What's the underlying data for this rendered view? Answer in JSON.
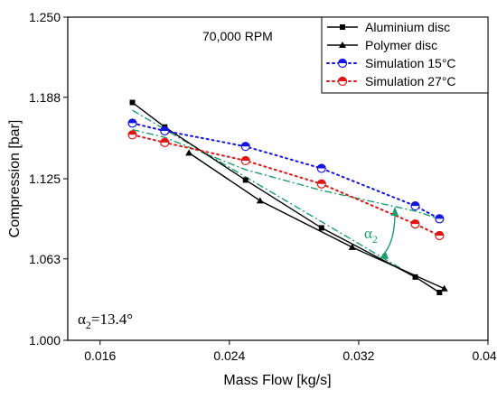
{
  "chart_data": {
    "type": "line",
    "annotation_top": "70,000 RPM",
    "xlabel": "Mass Flow [kg/s]",
    "ylabel": "Compression [bar]",
    "xlim": [
      0.014,
      0.04
    ],
    "ylim": [
      1.0,
      1.25
    ],
    "xticks": [
      "0.016",
      "0.024",
      "0.032",
      "0.040"
    ],
    "xtick_values": [
      0.016,
      0.024,
      0.032,
      0.04
    ],
    "yticks": [
      "1.000",
      "1.063",
      "1.125",
      "1.188",
      "1.250"
    ],
    "ytick_values": [
      1.0,
      1.063,
      1.125,
      1.188,
      1.25
    ],
    "legend_position": "top-right",
    "series": [
      {
        "name": "Aluminium disc",
        "marker": "square",
        "line": "solid",
        "color": "#000000",
        "x": [
          0.018,
          0.02,
          0.025,
          0.0297,
          0.0355,
          0.037
        ],
        "y": [
          1.184,
          1.165,
          1.124,
          1.087,
          1.049,
          1.037
        ]
      },
      {
        "name": "Polymer disc",
        "marker": "triangle",
        "line": "solid",
        "color": "#000000",
        "x": [
          0.0215,
          0.0259,
          0.0316,
          0.0373
        ],
        "y": [
          1.145,
          1.108,
          1.072,
          1.04
        ]
      },
      {
        "name": "Simulation 15°C",
        "marker": "half-circle",
        "line": "dotted",
        "color": "#1515e0",
        "x": [
          0.018,
          0.02,
          0.025,
          0.0297,
          0.0355,
          0.037
        ],
        "y": [
          1.168,
          1.162,
          1.15,
          1.133,
          1.104,
          1.094
        ]
      },
      {
        "name": "Simulation 27°C",
        "marker": "half-circle",
        "line": "dotted",
        "color": "#e01515",
        "x": [
          0.018,
          0.02,
          0.025,
          0.0297,
          0.0355,
          0.037
        ],
        "y": [
          1.159,
          1.153,
          1.139,
          1.121,
          1.09,
          1.081
        ]
      }
    ],
    "fit_lines_color": "#1a9e6a",
    "fit_lines": [
      {
        "x": [
          0.018,
          0.0355
        ],
        "y": [
          1.178,
          1.049
        ]
      },
      {
        "x": [
          0.018,
          0.02,
          0.025,
          0.0297,
          0.0355,
          0.037
        ],
        "y": [
          1.163,
          1.157,
          1.132,
          1.116,
          1.1,
          1.094
        ]
      }
    ],
    "angle_label": {
      "base": "α",
      "sub": "2"
    },
    "bottom_annotation": {
      "base": "α",
      "sub": "2",
      "value": "=13.4°"
    }
  }
}
